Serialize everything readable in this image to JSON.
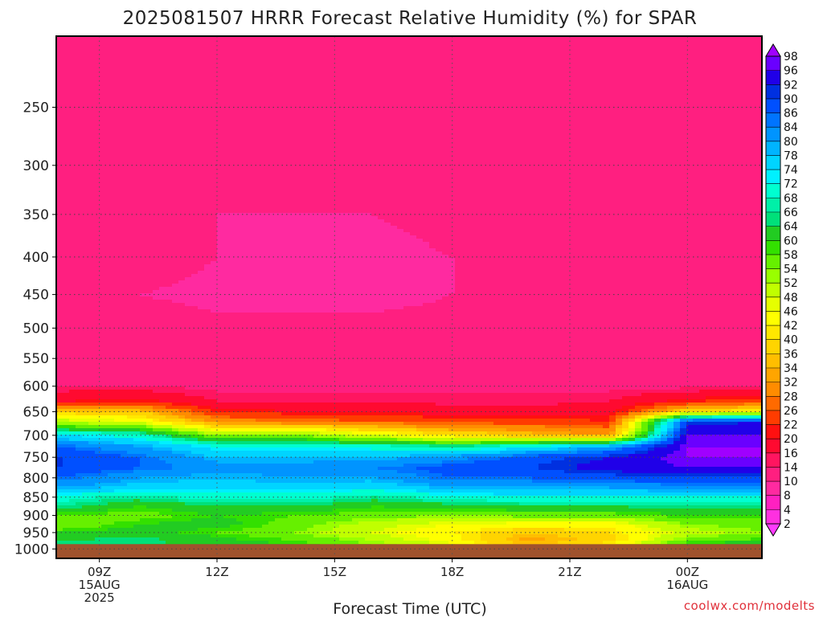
{
  "chart_data": {
    "type": "heatmap",
    "title": "2025081507 HRRR Forecast Relative Humidity (%) for SPAR",
    "xlabel": "Forecast Time (UTC)",
    "ylabel": "",
    "credit": "coolwx.com/modelts",
    "x_ticks": [
      {
        "hour": 9,
        "lines": [
          "09Z",
          "15AUG",
          "2025"
        ]
      },
      {
        "hour": 12,
        "lines": [
          "12Z"
        ]
      },
      {
        "hour": 15,
        "lines": [
          "15Z"
        ]
      },
      {
        "hour": 18,
        "lines": [
          "18Z"
        ]
      },
      {
        "hour": 21,
        "lines": [
          "21Z"
        ]
      },
      {
        "hour": 24,
        "lines": [
          "00Z",
          "16AUG"
        ]
      }
    ],
    "xlim": [
      7.9,
      25.9
    ],
    "y_ticks": [
      250,
      300,
      350,
      400,
      450,
      500,
      550,
      600,
      650,
      700,
      750,
      800,
      850,
      900,
      950,
      1000
    ],
    "ylim_hpa": [
      200,
      1030
    ],
    "y_scale": "log-pressure (inverted)",
    "ground_level_hpa": 985,
    "grid": "dotted",
    "colorbar": {
      "levels": [
        2,
        4,
        8,
        10,
        14,
        16,
        20,
        22,
        26,
        28,
        32,
        34,
        36,
        40,
        42,
        46,
        48,
        52,
        54,
        58,
        60,
        64,
        66,
        68,
        72,
        74,
        78,
        80,
        84,
        86,
        90,
        92,
        96,
        98
      ],
      "colors": [
        "#ff3bff",
        "#ff30e0",
        "#ff20c0",
        "#ff2aa0",
        "#ff1f80",
        "#ff1560",
        "#ff0a30",
        "#ff1010",
        "#ff3c00",
        "#ff6a00",
        "#ff8c00",
        "#ffa500",
        "#ffbe00",
        "#ffd400",
        "#ffe800",
        "#ffff00",
        "#e6ff00",
        "#c0ff00",
        "#99ff00",
        "#66f000",
        "#33e000",
        "#22cc22",
        "#00e07a",
        "#00f0a8",
        "#00ffd0",
        "#00f0ff",
        "#00d4ff",
        "#00b4ff",
        "#0094ff",
        "#0074ff",
        "#0050ff",
        "#0030e0",
        "#2000e8",
        "#6a00ff",
        "#a000ff"
      ]
    },
    "rh_profiles": {
      "levels_hpa": [
        200,
        250,
        300,
        350,
        400,
        450,
        500,
        550,
        600,
        630,
        650,
        670,
        700,
        725,
        750,
        775,
        800,
        825,
        850,
        875,
        900,
        925,
        950,
        975,
        985
      ],
      "columns": [
        {
          "hour": 8,
          "rh": [
            12,
            12,
            12,
            11,
            12,
            10,
            12,
            13,
            14,
            20,
            38,
            50,
            74,
            86,
            90,
            90,
            86,
            80,
            70,
            66,
            58,
            54,
            60,
            64,
            64
          ]
        },
        {
          "hour": 10,
          "rh": [
            12,
            12,
            12,
            11,
            12,
            10,
            12,
            13,
            14,
            22,
            36,
            46,
            70,
            80,
            86,
            86,
            80,
            76,
            66,
            60,
            56,
            60,
            62,
            66,
            64
          ]
        },
        {
          "hour": 12,
          "rh": [
            12,
            12,
            12,
            10,
            10,
            9,
            11,
            12,
            13,
            16,
            22,
            30,
            54,
            72,
            78,
            82,
            78,
            76,
            70,
            64,
            60,
            62,
            58,
            62,
            62
          ]
        },
        {
          "hour": 14,
          "rh": [
            12,
            12,
            12,
            10,
            9,
            9,
            11,
            12,
            13,
            16,
            20,
            28,
            54,
            72,
            78,
            82,
            80,
            76,
            70,
            64,
            58,
            56,
            54,
            58,
            60
          ]
        },
        {
          "hour": 16,
          "rh": [
            12,
            12,
            12,
            10,
            9,
            9,
            11,
            12,
            13,
            16,
            20,
            26,
            48,
            70,
            78,
            84,
            80,
            74,
            66,
            60,
            56,
            50,
            48,
            52,
            54
          ]
        },
        {
          "hour": 18,
          "rh": [
            12,
            12,
            13,
            11,
            10,
            10,
            11,
            12,
            13,
            15,
            18,
            24,
            40,
            66,
            82,
            88,
            86,
            80,
            70,
            62,
            54,
            46,
            42,
            44,
            48
          ]
        },
        {
          "hour": 20,
          "rh": [
            12,
            12,
            13,
            11,
            10,
            10,
            11,
            12,
            13,
            15,
            18,
            24,
            36,
            72,
            88,
            90,
            86,
            80,
            72,
            64,
            56,
            44,
            36,
            32,
            36
          ]
        },
        {
          "hour": 22,
          "rh": [
            12,
            12,
            13,
            11,
            10,
            10,
            11,
            12,
            13,
            16,
            18,
            22,
            32,
            80,
            92,
            94,
            88,
            80,
            72,
            64,
            56,
            44,
            40,
            38,
            44
          ]
        },
        {
          "hour": 24,
          "rh": [
            12,
            12,
            13,
            11,
            10,
            10,
            11,
            12,
            13,
            22,
            40,
            90,
            96,
            98,
            98,
            96,
            90,
            82,
            72,
            66,
            60,
            54,
            50,
            56,
            62
          ]
        },
        {
          "hour": 26,
          "rh": [
            12,
            12,
            13,
            11,
            10,
            10,
            11,
            12,
            13,
            24,
            44,
            92,
            96,
            98,
            98,
            96,
            90,
            82,
            72,
            66,
            60,
            56,
            54,
            60,
            64
          ]
        }
      ]
    }
  }
}
